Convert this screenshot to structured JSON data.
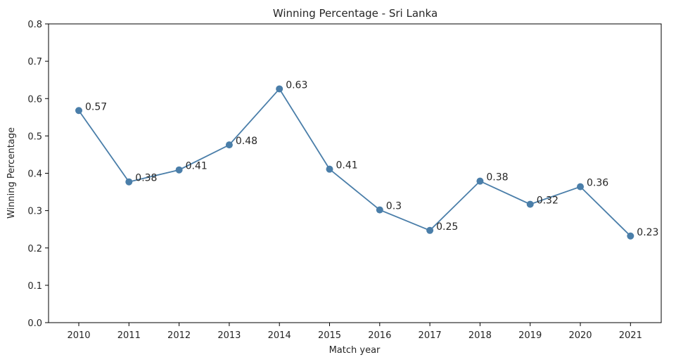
{
  "chart_data": {
    "type": "line",
    "title": "Winning Percentage - Sri Lanka",
    "xlabel": "Match year",
    "ylabel": "Winning Percentage",
    "categories": [
      "2010",
      "2011",
      "2012",
      "2013",
      "2014",
      "2015",
      "2016",
      "2017",
      "2018",
      "2019",
      "2020",
      "2021"
    ],
    "values": [
      0.57,
      0.38,
      0.41,
      0.48,
      0.63,
      0.41,
      0.3,
      0.25,
      0.38,
      0.32,
      0.36,
      0.23
    ],
    "value_labels": [
      "0.57",
      "0.38",
      "0.41",
      "0.48",
      "0.63",
      "0.41",
      "0.3",
      "0.25",
      "0.38",
      "0.32",
      "0.36",
      "0.23"
    ],
    "plotted_values": [
      0.568,
      0.377,
      0.409,
      0.476,
      0.626,
      0.411,
      0.302,
      0.247,
      0.379,
      0.317,
      0.364,
      0.232
    ],
    "ylim": [
      0.0,
      0.8
    ],
    "yticks": [
      "0.0",
      "0.1",
      "0.2",
      "0.3",
      "0.4",
      "0.5",
      "0.6",
      "0.7",
      "0.8"
    ],
    "grid": false,
    "line_color": "#4a7ea9",
    "marker": "circle"
  }
}
